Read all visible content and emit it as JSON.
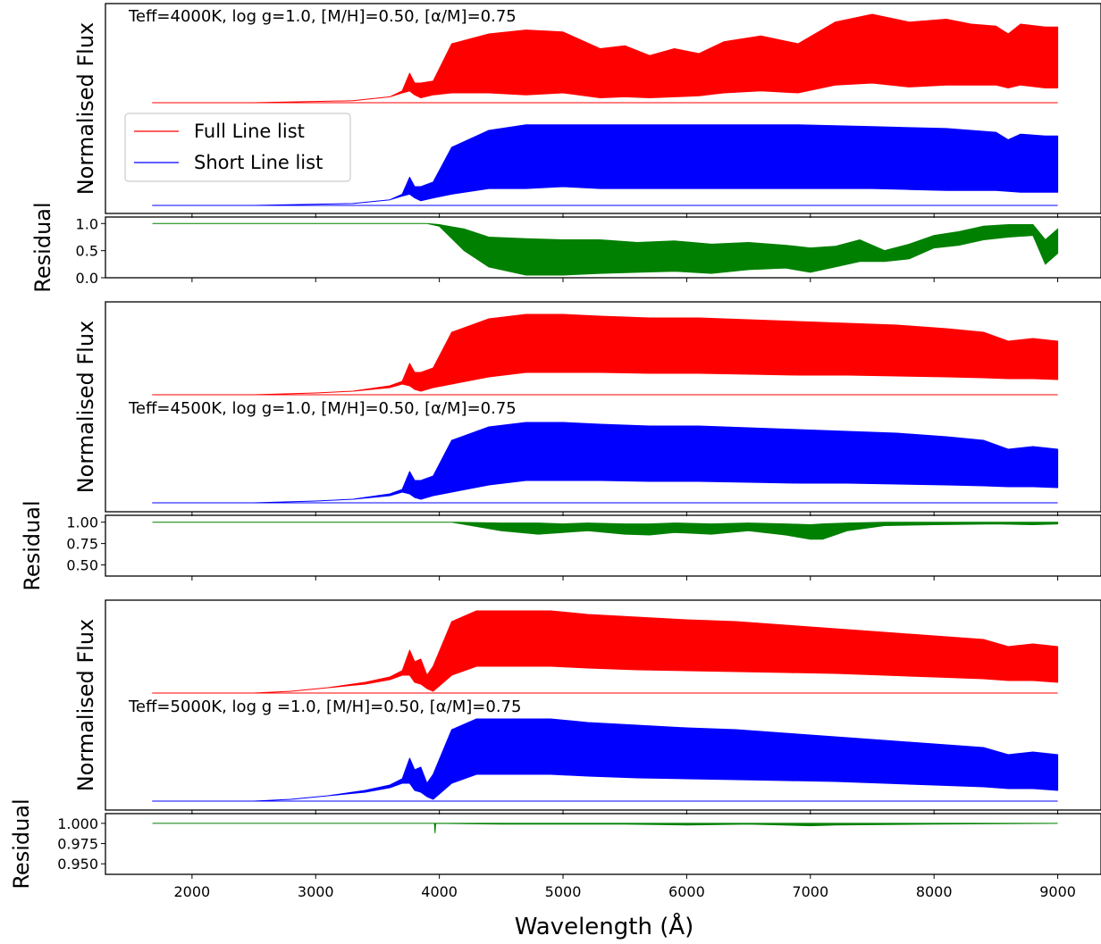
{
  "chart_data": [
    {
      "type": "line",
      "panel": "flux",
      "annotation": "Teff=4000K, log g=1.0, [M/H]=0.50, [α/M]=0.75",
      "ylabel": "Normalised Flux",
      "xlim": [
        1300,
        9350
      ],
      "legend": {
        "placement": "middle-left",
        "entries": [
          "Full Line list",
          "Short Line list"
        ]
      },
      "series": [
        {
          "name": "Full Line list",
          "color": "#ff0000",
          "x": [
            1680,
            2500,
            3300,
            3600,
            3700,
            3760,
            3800,
            3850,
            3950,
            4100,
            4400,
            4700,
            5000,
            5300,
            5500,
            5700,
            5900,
            6100,
            6300,
            6600,
            6900,
            7200,
            7500,
            7800,
            8100,
            8300,
            8500,
            8600,
            8700,
            8900,
            9000
          ],
          "upper": [
            0.0,
            0.0,
            0.02,
            0.06,
            0.12,
            0.3,
            0.2,
            0.2,
            0.22,
            0.6,
            0.7,
            0.74,
            0.72,
            0.55,
            0.58,
            0.48,
            0.55,
            0.5,
            0.62,
            0.68,
            0.6,
            0.82,
            0.9,
            0.82,
            0.85,
            0.8,
            0.78,
            0.7,
            0.8,
            0.77,
            0.77
          ],
          "lower": [
            0.0,
            0.0,
            0.02,
            0.06,
            0.1,
            0.12,
            0.08,
            0.05,
            0.08,
            0.1,
            0.1,
            0.08,
            0.1,
            0.05,
            0.06,
            0.05,
            0.06,
            0.07,
            0.1,
            0.12,
            0.1,
            0.18,
            0.2,
            0.16,
            0.18,
            0.18,
            0.18,
            0.15,
            0.18,
            0.15,
            0.15
          ]
        },
        {
          "name": "Short Line list",
          "color": "#0000ff",
          "x": [
            1680,
            2500,
            3300,
            3600,
            3700,
            3760,
            3800,
            3850,
            3950,
            4100,
            4400,
            4700,
            5000,
            5300,
            5500,
            5700,
            5900,
            6100,
            6300,
            6600,
            6900,
            7200,
            7500,
            7800,
            8100,
            8300,
            8500,
            8600,
            8700,
            8900,
            9000
          ],
          "upper": [
            0.0,
            0.0,
            0.02,
            0.06,
            0.12,
            0.3,
            0.2,
            0.2,
            0.25,
            0.62,
            0.8,
            0.86,
            0.86,
            0.86,
            0.86,
            0.86,
            0.86,
            0.86,
            0.86,
            0.86,
            0.86,
            0.85,
            0.84,
            0.83,
            0.82,
            0.8,
            0.78,
            0.7,
            0.76,
            0.74,
            0.74
          ],
          "lower": [
            0.0,
            0.0,
            0.02,
            0.06,
            0.1,
            0.12,
            0.08,
            0.05,
            0.08,
            0.12,
            0.18,
            0.18,
            0.2,
            0.18,
            0.18,
            0.18,
            0.18,
            0.18,
            0.18,
            0.18,
            0.18,
            0.18,
            0.18,
            0.17,
            0.16,
            0.16,
            0.16,
            0.15,
            0.14,
            0.14,
            0.14
          ]
        }
      ]
    },
    {
      "type": "line",
      "panel": "residual",
      "ylabel": "Residual",
      "xlim": [
        1300,
        9350
      ],
      "ylim": [
        0.0,
        1.12
      ],
      "yticks": [
        "1.0",
        "0.5",
        "0.0"
      ],
      "ytick_values": [
        1.0,
        0.5,
        0.0
      ],
      "series": [
        {
          "name": "",
          "color": "#008000",
          "x": [
            1680,
            3700,
            3900,
            4000,
            4200,
            4400,
            4700,
            5000,
            5300,
            5600,
            5900,
            6200,
            6500,
            6800,
            7000,
            7200,
            7400,
            7600,
            7800,
            8000,
            8200,
            8400,
            8600,
            8800,
            8900,
            9000
          ],
          "upper": [
            1.0,
            1.0,
            1.0,
            0.98,
            0.9,
            0.75,
            0.72,
            0.7,
            0.7,
            0.65,
            0.68,
            0.62,
            0.65,
            0.6,
            0.55,
            0.58,
            0.7,
            0.5,
            0.62,
            0.78,
            0.85,
            0.95,
            0.98,
            0.98,
            0.7,
            0.9
          ],
          "lower": [
            1.0,
            1.0,
            1.0,
            0.95,
            0.5,
            0.2,
            0.05,
            0.05,
            0.08,
            0.1,
            0.12,
            0.08,
            0.15,
            0.18,
            0.1,
            0.2,
            0.3,
            0.3,
            0.35,
            0.55,
            0.6,
            0.7,
            0.75,
            0.78,
            0.25,
            0.45
          ]
        }
      ]
    },
    {
      "type": "line",
      "panel": "flux",
      "annotation": "Teff=4500K, log g=1.0, [M/H]=0.50, [α/M]=0.75",
      "ylabel": "Normalised Flux",
      "xlim": [
        1300,
        9350
      ],
      "series": [
        {
          "name": "",
          "color": "#ff0000",
          "x": [
            1680,
            2500,
            3000,
            3300,
            3600,
            3700,
            3760,
            3800,
            3850,
            3950,
            4100,
            4400,
            4700,
            5000,
            5300,
            5700,
            6100,
            6500,
            6900,
            7300,
            7700,
            8100,
            8400,
            8600,
            8800,
            9000
          ],
          "upper": [
            0.0,
            0.0,
            0.02,
            0.04,
            0.1,
            0.15,
            0.35,
            0.25,
            0.25,
            0.3,
            0.7,
            0.85,
            0.9,
            0.9,
            0.88,
            0.86,
            0.86,
            0.84,
            0.82,
            0.8,
            0.78,
            0.74,
            0.7,
            0.6,
            0.63,
            0.6
          ],
          "lower": [
            0.0,
            0.0,
            0.02,
            0.04,
            0.08,
            0.12,
            0.1,
            0.06,
            0.04,
            0.08,
            0.12,
            0.2,
            0.25,
            0.25,
            0.25,
            0.24,
            0.24,
            0.23,
            0.22,
            0.22,
            0.21,
            0.2,
            0.19,
            0.18,
            0.18,
            0.17
          ]
        },
        {
          "name": "",
          "color": "#0000ff",
          "x": [
            1680,
            2500,
            3000,
            3300,
            3600,
            3700,
            3760,
            3800,
            3850,
            3950,
            4100,
            4400,
            4700,
            5000,
            5300,
            5700,
            6100,
            6500,
            6900,
            7300,
            7700,
            8100,
            8400,
            8600,
            8800,
            9000
          ],
          "upper": [
            0.0,
            0.0,
            0.02,
            0.04,
            0.1,
            0.15,
            0.35,
            0.25,
            0.25,
            0.3,
            0.7,
            0.85,
            0.9,
            0.9,
            0.88,
            0.86,
            0.86,
            0.84,
            0.82,
            0.8,
            0.78,
            0.74,
            0.7,
            0.6,
            0.63,
            0.6
          ],
          "lower": [
            0.0,
            0.0,
            0.02,
            0.04,
            0.08,
            0.12,
            0.1,
            0.06,
            0.04,
            0.08,
            0.12,
            0.2,
            0.25,
            0.25,
            0.25,
            0.24,
            0.24,
            0.23,
            0.22,
            0.22,
            0.21,
            0.2,
            0.19,
            0.18,
            0.18,
            0.17
          ]
        }
      ]
    },
    {
      "type": "line",
      "panel": "residual",
      "ylabel": "Residual",
      "xlim": [
        1300,
        9350
      ],
      "ylim": [
        0.37,
        1.08
      ],
      "yticks": [
        "1.00",
        "0.75",
        "0.50"
      ],
      "ytick_values": [
        1.0,
        0.75,
        0.5
      ],
      "series": [
        {
          "name": "",
          "color": "#008000",
          "x": [
            1680,
            3900,
            3960,
            4100,
            4500,
            4800,
            5000,
            5200,
            5500,
            5700,
            5900,
            6200,
            6500,
            6800,
            7000,
            7100,
            7300,
            7600,
            8000,
            8500,
            8800,
            9000
          ],
          "upper": [
            1.0,
            1.0,
            1.0,
            1.0,
            0.99,
            0.99,
            0.98,
            0.99,
            0.98,
            0.98,
            0.99,
            0.98,
            0.99,
            0.98,
            0.97,
            0.98,
            0.99,
            1.0,
            1.0,
            1.0,
            1.0,
            1.0
          ],
          "lower": [
            1.0,
            1.0,
            1.0,
            1.0,
            0.9,
            0.86,
            0.88,
            0.9,
            0.86,
            0.85,
            0.88,
            0.86,
            0.9,
            0.85,
            0.8,
            0.8,
            0.9,
            0.96,
            0.97,
            0.98,
            0.97,
            0.98
          ]
        }
      ]
    },
    {
      "type": "line",
      "panel": "flux",
      "annotation": "Teff=5000K, log g =1.0, [M/H]=0.50, [α/M]=0.75",
      "ylabel": "Normalised Flux",
      "xlim": [
        1300,
        9350
      ],
      "series": [
        {
          "name": "",
          "color": "#ff0000",
          "x": [
            1680,
            2500,
            2800,
            3100,
            3400,
            3600,
            3700,
            3760,
            3800,
            3850,
            3900,
            3950,
            4100,
            4300,
            4600,
            4900,
            5200,
            5600,
            6000,
            6400,
            6800,
            7200,
            7600,
            8000,
            8400,
            8600,
            8800,
            9000
          ],
          "upper": [
            0.0,
            0.0,
            0.02,
            0.06,
            0.12,
            0.18,
            0.25,
            0.48,
            0.35,
            0.38,
            0.2,
            0.3,
            0.8,
            0.92,
            0.92,
            0.92,
            0.88,
            0.85,
            0.82,
            0.8,
            0.76,
            0.72,
            0.68,
            0.64,
            0.6,
            0.52,
            0.55,
            0.52
          ],
          "lower": [
            0.0,
            0.0,
            0.02,
            0.06,
            0.1,
            0.15,
            0.2,
            0.2,
            0.12,
            0.1,
            0.05,
            0.02,
            0.2,
            0.3,
            0.3,
            0.3,
            0.28,
            0.26,
            0.25,
            0.24,
            0.23,
            0.22,
            0.2,
            0.18,
            0.16,
            0.14,
            0.14,
            0.12
          ]
        },
        {
          "name": "",
          "color": "#0000ff",
          "x": [
            1680,
            2500,
            2800,
            3100,
            3400,
            3600,
            3700,
            3760,
            3800,
            3850,
            3900,
            3950,
            4100,
            4300,
            4600,
            4900,
            5200,
            5600,
            6000,
            6400,
            6800,
            7200,
            7600,
            8000,
            8400,
            8600,
            8800,
            9000
          ],
          "upper": [
            0.0,
            0.0,
            0.02,
            0.06,
            0.12,
            0.18,
            0.25,
            0.48,
            0.35,
            0.38,
            0.2,
            0.3,
            0.8,
            0.92,
            0.92,
            0.92,
            0.88,
            0.85,
            0.82,
            0.8,
            0.76,
            0.72,
            0.68,
            0.64,
            0.6,
            0.52,
            0.55,
            0.52
          ],
          "lower": [
            0.0,
            0.0,
            0.02,
            0.06,
            0.1,
            0.15,
            0.2,
            0.2,
            0.12,
            0.1,
            0.05,
            0.02,
            0.2,
            0.3,
            0.3,
            0.3,
            0.28,
            0.26,
            0.25,
            0.24,
            0.23,
            0.22,
            0.2,
            0.18,
            0.16,
            0.14,
            0.14,
            0.12
          ]
        }
      ]
    },
    {
      "type": "line",
      "panel": "residual",
      "ylabel": "Residual",
      "xlabel": "Wavelength (Å)",
      "xlim": [
        1300,
        9350
      ],
      "xticks": [
        "2000",
        "3000",
        "4000",
        "5000",
        "6000",
        "7000",
        "8000",
        "9000"
      ],
      "xtick_values": [
        2000,
        3000,
        4000,
        5000,
        6000,
        7000,
        8000,
        9000
      ],
      "ylim": [
        0.937,
        1.012
      ],
      "yticks": [
        "1.000",
        "0.975",
        "0.950"
      ],
      "ytick_values": [
        1.0,
        0.975,
        0.95
      ],
      "series": [
        {
          "name": "",
          "color": "#008000",
          "x": [
            1680,
            3960,
            3965,
            3970,
            4500,
            5000,
            5500,
            6000,
            6500,
            7000,
            7200,
            8000,
            9000
          ],
          "upper": [
            1.0,
            1.0,
            1.0,
            1.0,
            1.0,
            1.0,
            1.0,
            1.0,
            1.0,
            1.0,
            1.0,
            1.0,
            1.0
          ],
          "lower": [
            1.0,
            1.0,
            0.988,
            1.0,
            0.999,
            0.999,
            0.999,
            0.998,
            0.999,
            0.997,
            0.998,
            0.999,
            1.0
          ]
        }
      ]
    }
  ]
}
